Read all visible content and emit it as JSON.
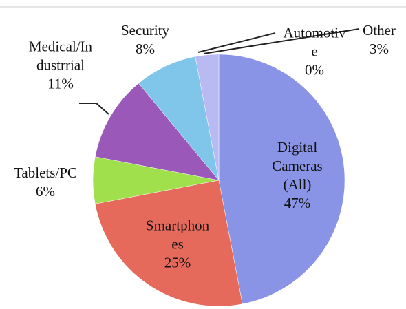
{
  "chart_data": {
    "type": "pie",
    "categories": [
      "Digital Cameras (All)",
      "Smartphones",
      "Tablets/PC",
      "Medical/Industrrial",
      "Security",
      "Automotive",
      "Other"
    ],
    "values": [
      47,
      25,
      6,
      11,
      8,
      0,
      3
    ],
    "value_labels": [
      "47%",
      "25%",
      "6%",
      "11%",
      "8%",
      "0%",
      "3%"
    ],
    "colors": [
      "#8a94e6",
      "#e66a5c",
      "#9fe04c",
      "#9a58b8",
      "#7fc6ea",
      "#c8c8f0",
      "#b9baf2"
    ]
  }
}
